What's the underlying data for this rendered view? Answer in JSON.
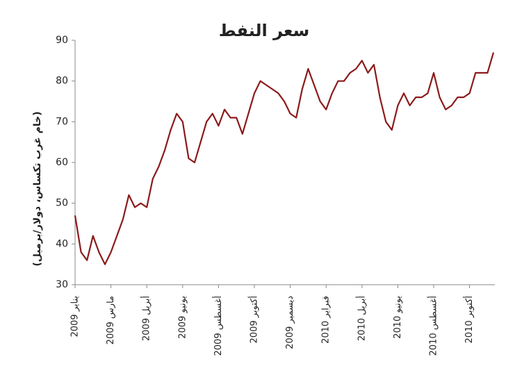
{
  "chart_data": {
    "type": "line",
    "title": "سعر النفط",
    "y_label": "(خام غرب تكساس، دولار/برميل)",
    "categories": [
      "يناير 2009",
      null,
      null,
      null,
      null,
      null,
      "مارس 2009",
      null,
      null,
      null,
      null,
      null,
      "أبريل 2009",
      null,
      null,
      null,
      null,
      null,
      "يونيو 2009",
      null,
      null,
      null,
      null,
      null,
      "أغسطس 2009",
      null,
      null,
      null,
      null,
      null,
      "أكتوبر 2009",
      null,
      null,
      null,
      null,
      null,
      "ديسمبر 2009",
      null,
      null,
      null,
      null,
      null,
      "فبراير 2010",
      null,
      null,
      null,
      null,
      null,
      "أبريل 2010",
      null,
      null,
      null,
      null,
      null,
      "يونيو 2010",
      null,
      null,
      null,
      null,
      null,
      "أغسطس 2010",
      null,
      null,
      null,
      null,
      null,
      "أكتوبر 2010",
      null,
      null,
      null,
      null
    ],
    "series": [
      {
        "name": "سعر النفط",
        "color": "#8b1a1a",
        "values": [
          47,
          38,
          36,
          42,
          38,
          35,
          38,
          42,
          46,
          52,
          49,
          50,
          49,
          56,
          59,
          63,
          68,
          72,
          70,
          61,
          60,
          65,
          70,
          72,
          69,
          73,
          71,
          71,
          67,
          72,
          77,
          80,
          79,
          78,
          77,
          75,
          72,
          71,
          78,
          83,
          79,
          75,
          73,
          77,
          80,
          80,
          82,
          83,
          85,
          82,
          84,
          76,
          70,
          68,
          74,
          77,
          74,
          76,
          76,
          77,
          82,
          76,
          73,
          74,
          76,
          76,
          77,
          82,
          82,
          82,
          87
        ]
      }
    ],
    "ylim": [
      30,
      90
    ],
    "yticks": [
      30,
      40,
      50,
      60,
      70,
      80,
      90
    ],
    "grid": false
  }
}
